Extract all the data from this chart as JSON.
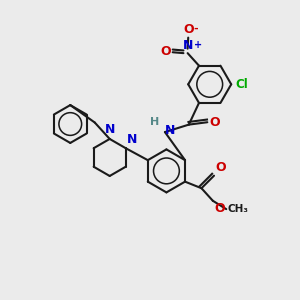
{
  "bg_color": "#ebebeb",
  "bond_color": "#1a1a1a",
  "N_color": "#0000cc",
  "O_color": "#cc0000",
  "Cl_color": "#00aa00",
  "H_color": "#558888",
  "lw": 1.5,
  "figsize": [
    3.0,
    3.0
  ],
  "dpi": 100,
  "xlim": [
    0,
    10
  ],
  "ylim": [
    0,
    10
  ]
}
